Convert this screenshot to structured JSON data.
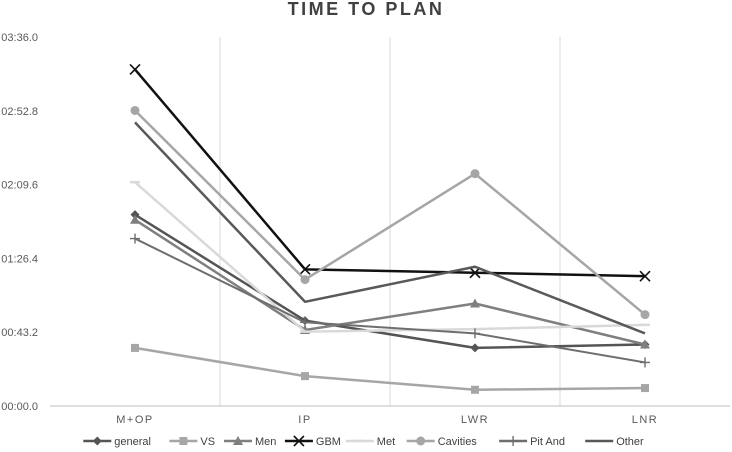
{
  "chart_data": {
    "type": "line",
    "title": "TIME TO PLAN",
    "xlabel": "",
    "ylabel": "",
    "categories": [
      "M+OP",
      "IP",
      "LWR",
      "LNR"
    ],
    "y_unit": "seconds",
    "y_ticks": [
      0,
      43.2,
      86.4,
      129.6,
      172.8,
      216
    ],
    "y_tick_labels": [
      "00:00.0",
      "00:43.2",
      "01:26.4",
      "02:09.6",
      "02:52.8",
      "03:36.0"
    ],
    "ylim": [
      0,
      216
    ],
    "grid": "vertical",
    "legend_position": "bottom",
    "series": [
      {
        "name": "general",
        "marker": "diamond",
        "color": "#555555",
        "width": 2.5,
        "values": [
          112,
          50,
          34,
          36
        ]
      },
      {
        "name": "VS",
        "marker": "square",
        "color": "#a6a6a6",
        "width": 2.5,
        "values": [
          34,
          17.5,
          9.5,
          10.5
        ]
      },
      {
        "name": "Men",
        "marker": "triangle",
        "color": "#7f7f7f",
        "width": 2.5,
        "values": [
          109,
          44.5,
          60,
          36
        ]
      },
      {
        "name": "GBM",
        "marker": "x",
        "color": "#111111",
        "width": 2.5,
        "values": [
          197,
          80,
          78,
          76
        ]
      },
      {
        "name": "Met",
        "marker": "dash",
        "color": "#d9d9d9",
        "width": 2.5,
        "values": [
          131,
          43.5,
          45,
          47.5
        ]
      },
      {
        "name": "Cavities",
        "marker": "circle",
        "color": "#a6a6a6",
        "width": 2.5,
        "values": [
          173,
          74,
          136,
          53.5
        ]
      },
      {
        "name": "Pit And",
        "marker": "plus",
        "color": "#6e6e6e",
        "width": 2,
        "values": [
          98,
          49,
          42.5,
          25.5
        ]
      },
      {
        "name": "Other",
        "marker": "none",
        "color": "#595959",
        "width": 2.5,
        "values": [
          166,
          61,
          81.5,
          42.5
        ]
      }
    ]
  }
}
